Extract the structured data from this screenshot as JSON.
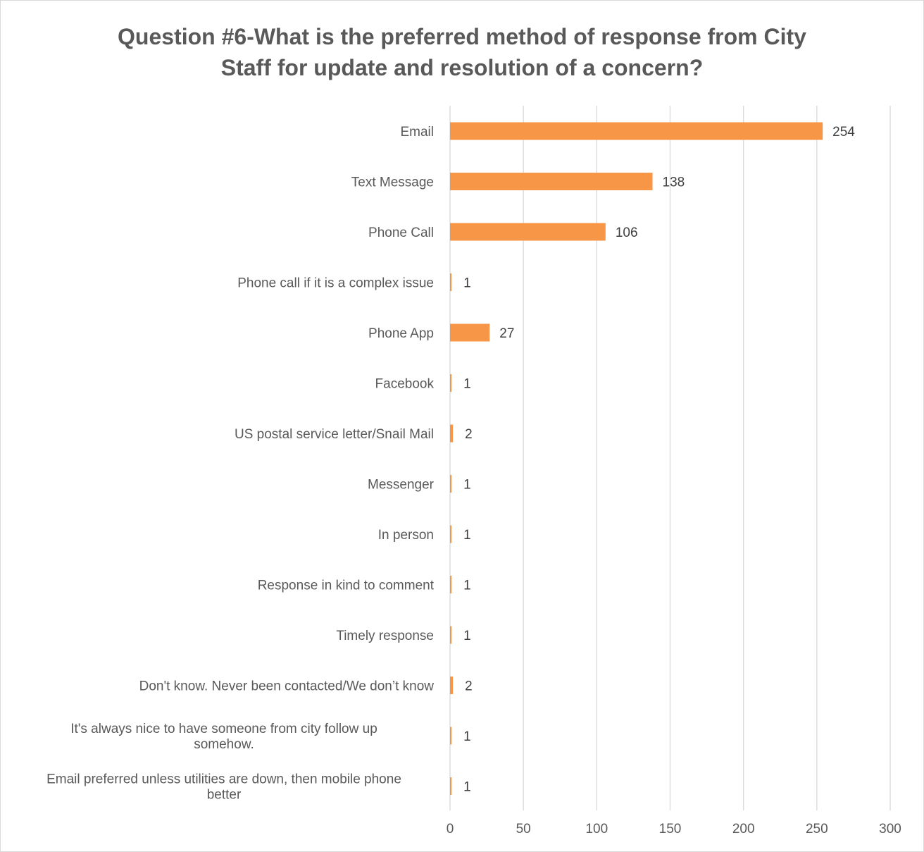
{
  "chart_data": {
    "type": "bar",
    "orientation": "horizontal",
    "title": "Question #6-What is the preferred method of response from City Staff for update and resolution of a concern?",
    "title_lines": [
      "Question #6-What is the preferred method of response from City",
      "Staff for update and resolution of a concern?"
    ],
    "categories": [
      [
        "Email"
      ],
      [
        "Text Message"
      ],
      [
        "Phone Call"
      ],
      [
        "Phone call if it is a complex issue"
      ],
      [
        "Phone App"
      ],
      [
        "Facebook"
      ],
      [
        "US postal service letter/Snail Mail"
      ],
      [
        "Messenger"
      ],
      [
        "In person"
      ],
      [
        "Response in kind to comment"
      ],
      [
        "Timely response"
      ],
      [
        "Don't know.  Never been contacted/We don’t know"
      ],
      [
        "It's always nice to have someone from city follow up",
        "somehow."
      ],
      [
        "Email preferred unless utilities are down, then mobile phone",
        "better"
      ]
    ],
    "values": [
      254,
      138,
      106,
      1,
      27,
      1,
      2,
      1,
      1,
      1,
      1,
      2,
      1,
      1
    ],
    "xlim": [
      0,
      300
    ],
    "xticks": [
      0,
      50,
      100,
      150,
      200,
      250,
      300
    ],
    "grid": true,
    "legend": "none",
    "bar_color": "#F79646",
    "gridline_color": "#d9d9d9"
  }
}
